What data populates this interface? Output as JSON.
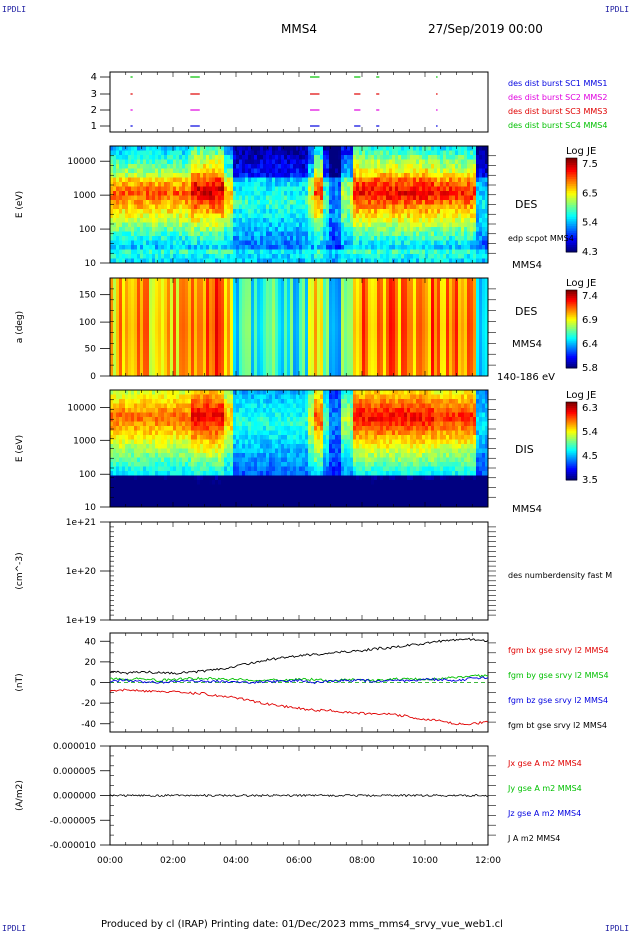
{
  "corners": {
    "label": "IPDLI"
  },
  "header": {
    "spacecraft": "MMS4",
    "date": "27/Sep/2019 00:00"
  },
  "footer": {
    "text": "Produced by cl (IRAP)   Printing date: 01/Dec/2023   mms_mms4_srvy_vue_web1.cl"
  },
  "time_axis": {
    "ticks": [
      "00:00",
      "02:00",
      "04:00",
      "06:00",
      "08:00",
      "10:00",
      "12:00"
    ]
  },
  "colors": {
    "black": "#000000",
    "red": "#e00000",
    "green": "#00c000",
    "blue": "#0000e0",
    "magenta": "#e000e0"
  },
  "chart_data": [
    {
      "type": "scatter",
      "panel": "burst-availability",
      "yticks": [
        "4",
        "3",
        "2",
        "1"
      ],
      "legend": [
        {
          "label": "des dist burst SC1 MMS1",
          "color": "#0000e0"
        },
        {
          "label": "des dist burst SC2 MMS2",
          "color": "#e000e0"
        },
        {
          "label": "des dist burst SC3 MMS3",
          "color": "#e00000"
        },
        {
          "label": "des dist burst SC4 MMS4",
          "color": "#00c000"
        }
      ],
      "segments_hours": [
        [
          0.65,
          0.72
        ],
        [
          2.55,
          2.85
        ],
        [
          6.35,
          6.65
        ],
        [
          7.75,
          7.95
        ],
        [
          8.45,
          8.55
        ],
        [
          10.35,
          10.4
        ]
      ]
    },
    {
      "type": "heatmap",
      "panel": "des-energy",
      "ylabel": "E (eV)",
      "yticks": [
        "10000",
        "1000",
        "100",
        "10"
      ],
      "instrument": "DES",
      "extra_label": "edp scpot MMS4",
      "sc_label": "MMS4",
      "colorbar": {
        "title": "Log JE",
        "ticks": [
          "7.5",
          "6.5",
          "5.4",
          "4.3"
        ]
      }
    },
    {
      "type": "heatmap",
      "panel": "des-pitch",
      "ylabel": "a (deg)",
      "yticks": [
        "150",
        "100",
        "50",
        "0"
      ],
      "instrument": "DES",
      "sc_label": "MMS4",
      "energy_range": "140-186 eV",
      "colorbar": {
        "title": "Log JE",
        "ticks": [
          "7.4",
          "6.9",
          "6.4",
          "5.8"
        ]
      }
    },
    {
      "type": "heatmap",
      "panel": "dis-energy",
      "ylabel": "E (eV)",
      "yticks": [
        "10000",
        "1000",
        "100",
        "10"
      ],
      "instrument": "DIS",
      "sc_label": "MMS4",
      "colorbar": {
        "title": "Log JE",
        "ticks": [
          "6.3",
          "5.4",
          "4.5",
          "3.5"
        ]
      }
    },
    {
      "type": "line",
      "panel": "density",
      "ylabel": "(cm^-3)",
      "yticks": [
        "1e+21",
        "1e+20",
        "1e+19"
      ],
      "legend": [
        {
          "label": "des numberdensity fast M",
          "color": "#000000"
        }
      ]
    },
    {
      "type": "line",
      "panel": "magnetic-field",
      "ylabel": "(nT)",
      "ylim": [
        -48,
        48
      ],
      "yticks": [
        "40",
        "20",
        "0",
        "-20",
        "-40"
      ],
      "legend": [
        {
          "label": "fgm bx gse srvy l2 MMS4",
          "color": "#e00000"
        },
        {
          "label": "fgm by gse srvy l2 MMS4",
          "color": "#00c000"
        },
        {
          "label": "fgm bz gse srvy l2 MMS4",
          "color": "#0000e0"
        },
        {
          "label": "fgm bt gse srvy l2 MMS4",
          "color": "#000000"
        }
      ],
      "x_hours": [
        0,
        0.5,
        1,
        1.5,
        2,
        2.5,
        3,
        3.5,
        4,
        4.5,
        5,
        5.5,
        6,
        6.5,
        7,
        7.5,
        8,
        8.5,
        9,
        9.5,
        10,
        10.5,
        11,
        11.5,
        12
      ],
      "series": [
        {
          "name": "fgm bt gse srvy l2 MMS4",
          "values": [
            11,
            9,
            10,
            10,
            9,
            10,
            11,
            13,
            16,
            19,
            22,
            24,
            26,
            27,
            28,
            30,
            31,
            33,
            34,
            36,
            38,
            40,
            41,
            42,
            40
          ]
        },
        {
          "name": "fgm bx gse srvy l2 MMS4",
          "values": [
            -8,
            -7,
            -8,
            -9,
            -9,
            -10,
            -11,
            -13,
            -15,
            -18,
            -21,
            -23,
            -25,
            -27,
            -27,
            -29,
            -30,
            -30,
            -31,
            -33,
            -36,
            -37,
            -40,
            -40,
            -38
          ]
        },
        {
          "name": "fgm by gse srvy l2 MMS4",
          "values": [
            4,
            3,
            4,
            2,
            3,
            4,
            4,
            3,
            3,
            2,
            3,
            2,
            3,
            3,
            2,
            3,
            3,
            2,
            3,
            4,
            3,
            4,
            5,
            6,
            7
          ]
        },
        {
          "name": "fgm bz gse srvy l2 MMS4",
          "values": [
            1,
            2,
            1,
            0,
            1,
            2,
            1,
            1,
            1,
            0,
            1,
            1,
            2,
            0,
            1,
            2,
            2,
            1,
            2,
            2,
            3,
            3,
            2,
            4,
            5
          ]
        }
      ]
    },
    {
      "type": "line",
      "panel": "current",
      "ylabel": "(A/m2)",
      "ylim": [
        -1e-05,
        1e-05
      ],
      "yticks": [
        "0.000010",
        "0.000005",
        "0.000000",
        "-0.000005",
        "-0.000010"
      ],
      "legend": [
        {
          "label": "Jx gse A m2 MMS4",
          "color": "#e00000"
        },
        {
          "label": "Jy gse A m2 MMS4",
          "color": "#00c000"
        },
        {
          "label": "Jz gse A m2 MMS4",
          "color": "#0000e0"
        },
        {
          "label": "J A m2 MMS4",
          "color": "#000000"
        }
      ]
    }
  ]
}
